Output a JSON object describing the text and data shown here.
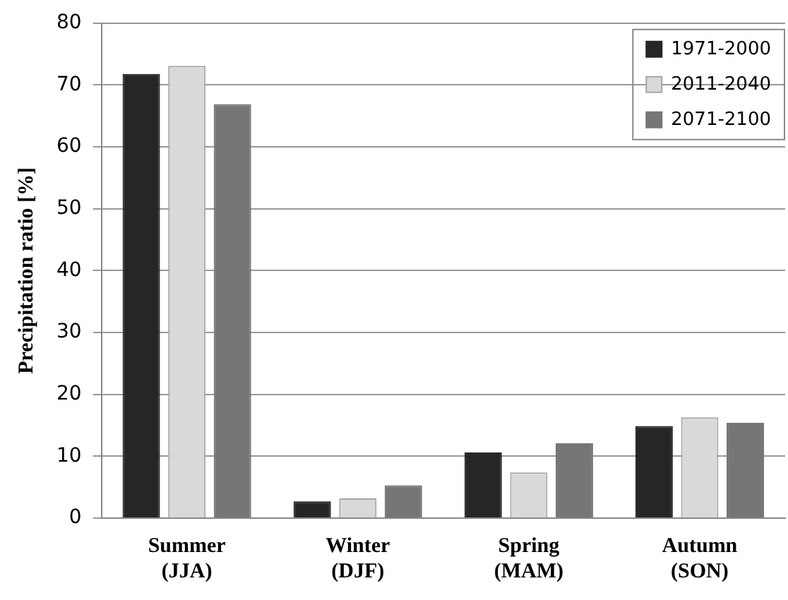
{
  "chart_data": {
    "type": "bar",
    "ylabel": "Precipitation ratio [%]",
    "categories": [
      "Summer\n(JJA)",
      "Winter\n(DJF)",
      "Spring\n(MAM)",
      "Autumn\n(SON)"
    ],
    "series": [
      {
        "name": "1971-2000",
        "color": "#262626",
        "values": [
          71.8,
          2.7,
          10.6,
          14.9
        ]
      },
      {
        "name": "2011-2040",
        "color": "#d9d9d9",
        "values": [
          73.1,
          3.2,
          7.4,
          16.3
        ]
      },
      {
        "name": "2071-2100",
        "color": "#767676",
        "values": [
          66.9,
          5.3,
          12.1,
          15.4
        ]
      }
    ],
    "ylim": [
      0,
      80
    ],
    "yticks": [
      0,
      10,
      20,
      30,
      40,
      50,
      60,
      70,
      80
    ],
    "grid": "y",
    "legend": "top right"
  }
}
